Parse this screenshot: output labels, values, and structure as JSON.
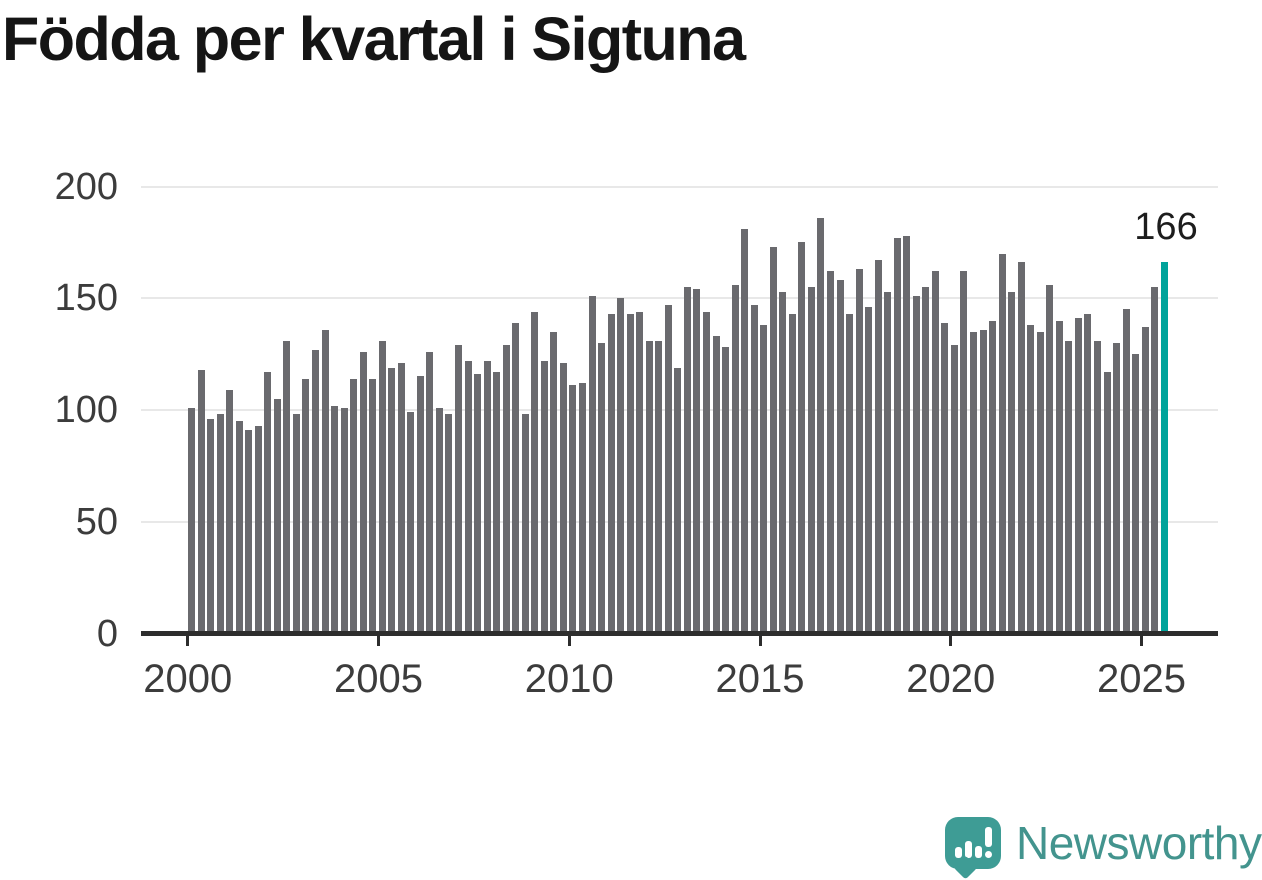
{
  "title": "Födda per kvartal i Sigtuna",
  "annotation": {
    "value_label": "166"
  },
  "branding": {
    "name": "Newsworthy",
    "logo_color": "#3e9c95",
    "text_color": "#43948e"
  },
  "colors": {
    "bar": "#6a6a6e",
    "highlight": "#00a39b",
    "axis": "#2d2d2d",
    "gridline": "#e8e8e8",
    "tick_text": "#3c3c3c",
    "title_text": "#151515"
  },
  "chart_data": {
    "type": "bar",
    "title": "Födda per kvartal i Sigtuna",
    "xlabel": "",
    "ylabel": "",
    "legend": "none",
    "grid": true,
    "x_axis": {
      "tick_labels": [
        "2000",
        "2005",
        "2010",
        "2015",
        "2020",
        "2025"
      ],
      "start": "2000 Q1",
      "end": "2025 Q3",
      "frequency": "quarterly"
    },
    "y_axis": {
      "tick_labels": [
        0,
        50,
        100,
        150,
        200
      ],
      "range": [
        0,
        200
      ]
    },
    "highlight": {
      "index": 102,
      "label": "166",
      "color": "#00a39b"
    },
    "series": [
      {
        "name": "Födda per kvartal",
        "values": [
          101,
          118,
          96,
          98,
          109,
          95,
          91,
          93,
          117,
          105,
          131,
          98,
          114,
          127,
          136,
          102,
          101,
          114,
          126,
          114,
          131,
          119,
          121,
          99,
          115,
          126,
          101,
          98,
          129,
          122,
          116,
          122,
          117,
          129,
          139,
          98,
          144,
          122,
          135,
          121,
          111,
          112,
          151,
          130,
          143,
          150,
          143,
          144,
          131,
          131,
          147,
          119,
          155,
          154,
          144,
          133,
          128,
          156,
          181,
          147,
          138,
          173,
          153,
          143,
          175,
          155,
          186,
          162,
          158,
          143,
          163,
          146,
          167,
          153,
          177,
          178,
          151,
          155,
          162,
          139,
          129,
          162,
          135,
          136,
          140,
          170,
          153,
          166,
          138,
          135,
          156,
          140,
          131,
          141,
          143,
          131,
          117,
          130,
          145,
          125,
          137,
          155,
          166
        ]
      }
    ]
  }
}
